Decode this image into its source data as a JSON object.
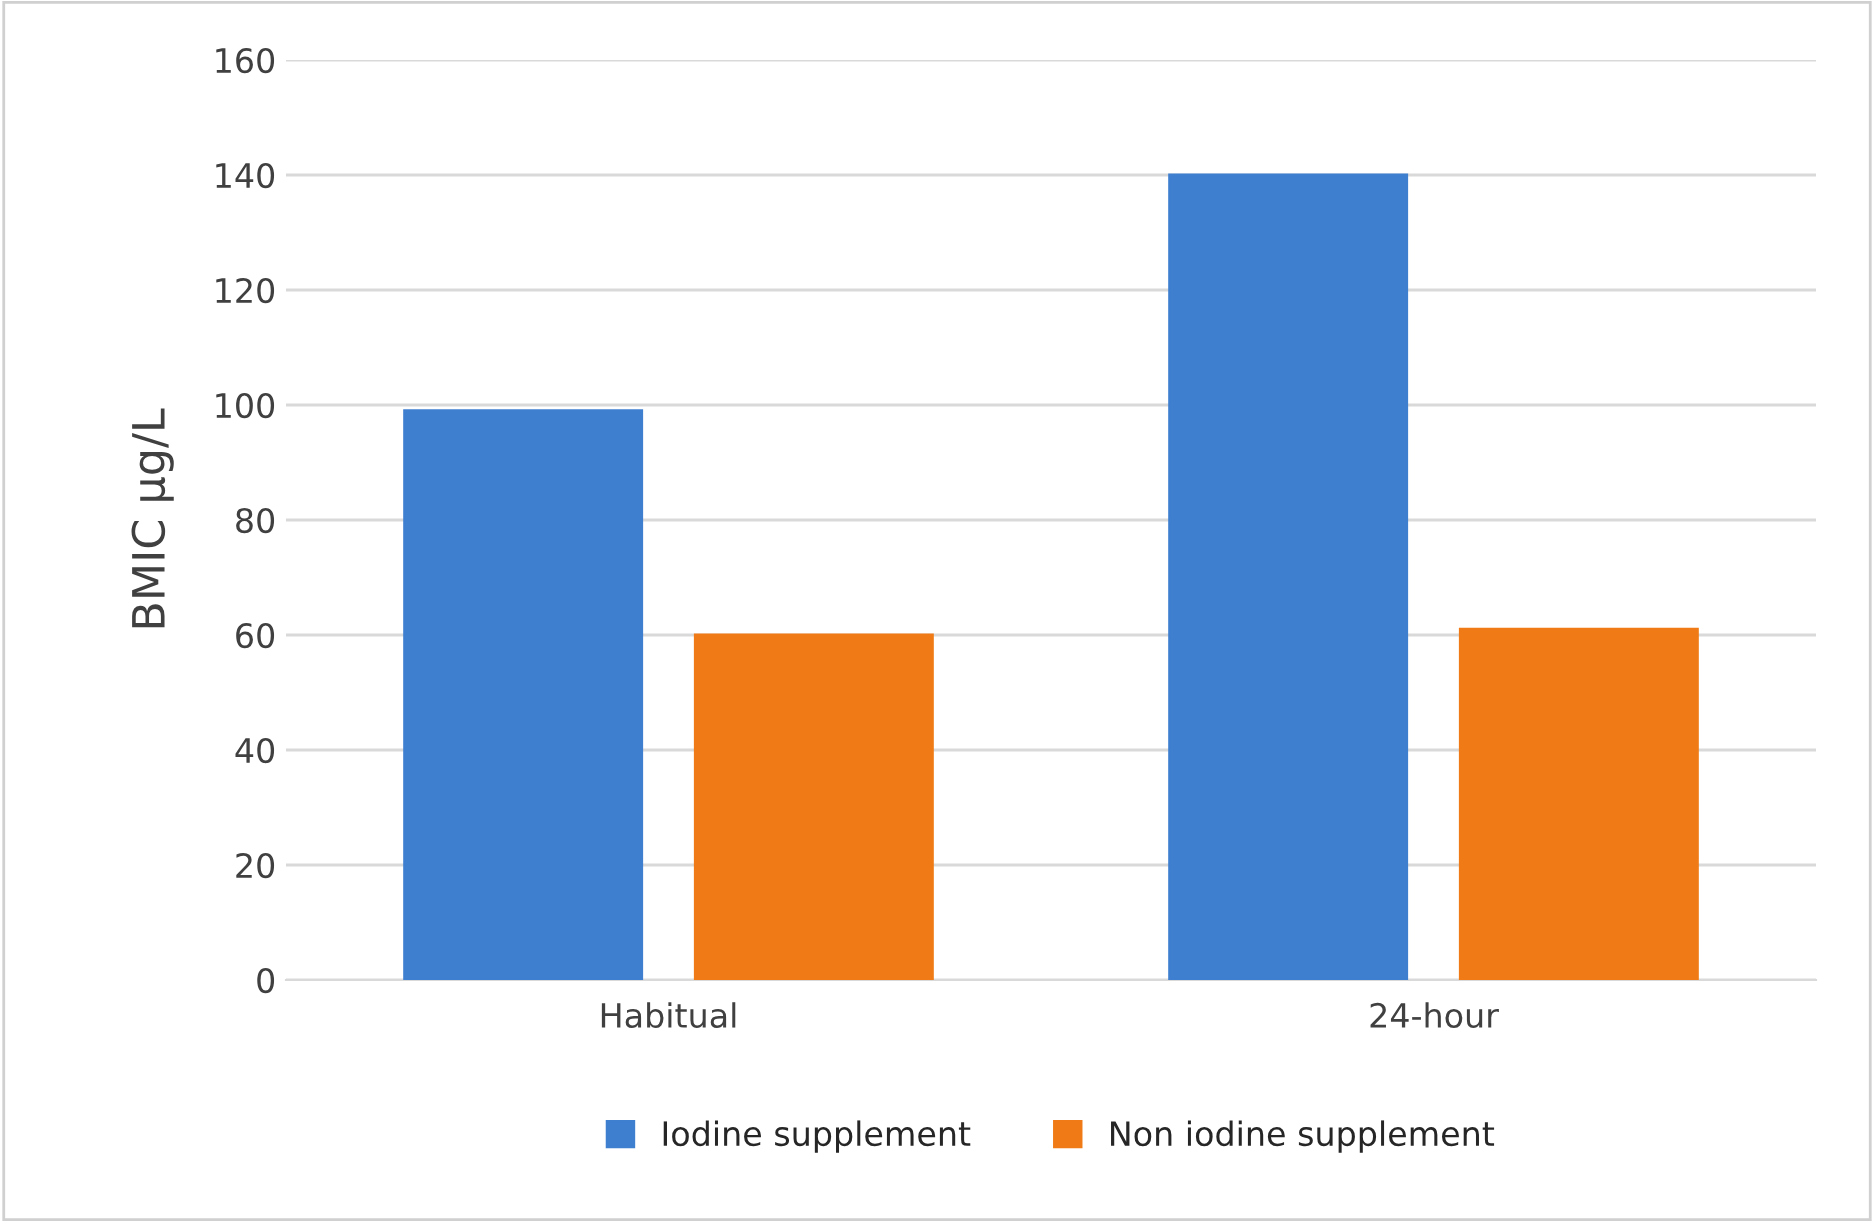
{
  "chart_data": {
    "type": "bar",
    "ylabel": "BMIC µg/L",
    "categories": [
      "Habitual",
      "24-hour"
    ],
    "series": [
      {
        "name": "Iodine supplement",
        "color": "#3f7fd0",
        "values": [
          99,
          140
        ]
      },
      {
        "name": "Non iodine supplement",
        "color": "#f07b16",
        "values": [
          60,
          61
        ]
      }
    ],
    "ylim": [
      0,
      160
    ],
    "yticks": [
      0,
      20,
      40,
      60,
      80,
      100,
      120,
      140,
      160
    ],
    "grid": "y",
    "legend": "bottom"
  }
}
